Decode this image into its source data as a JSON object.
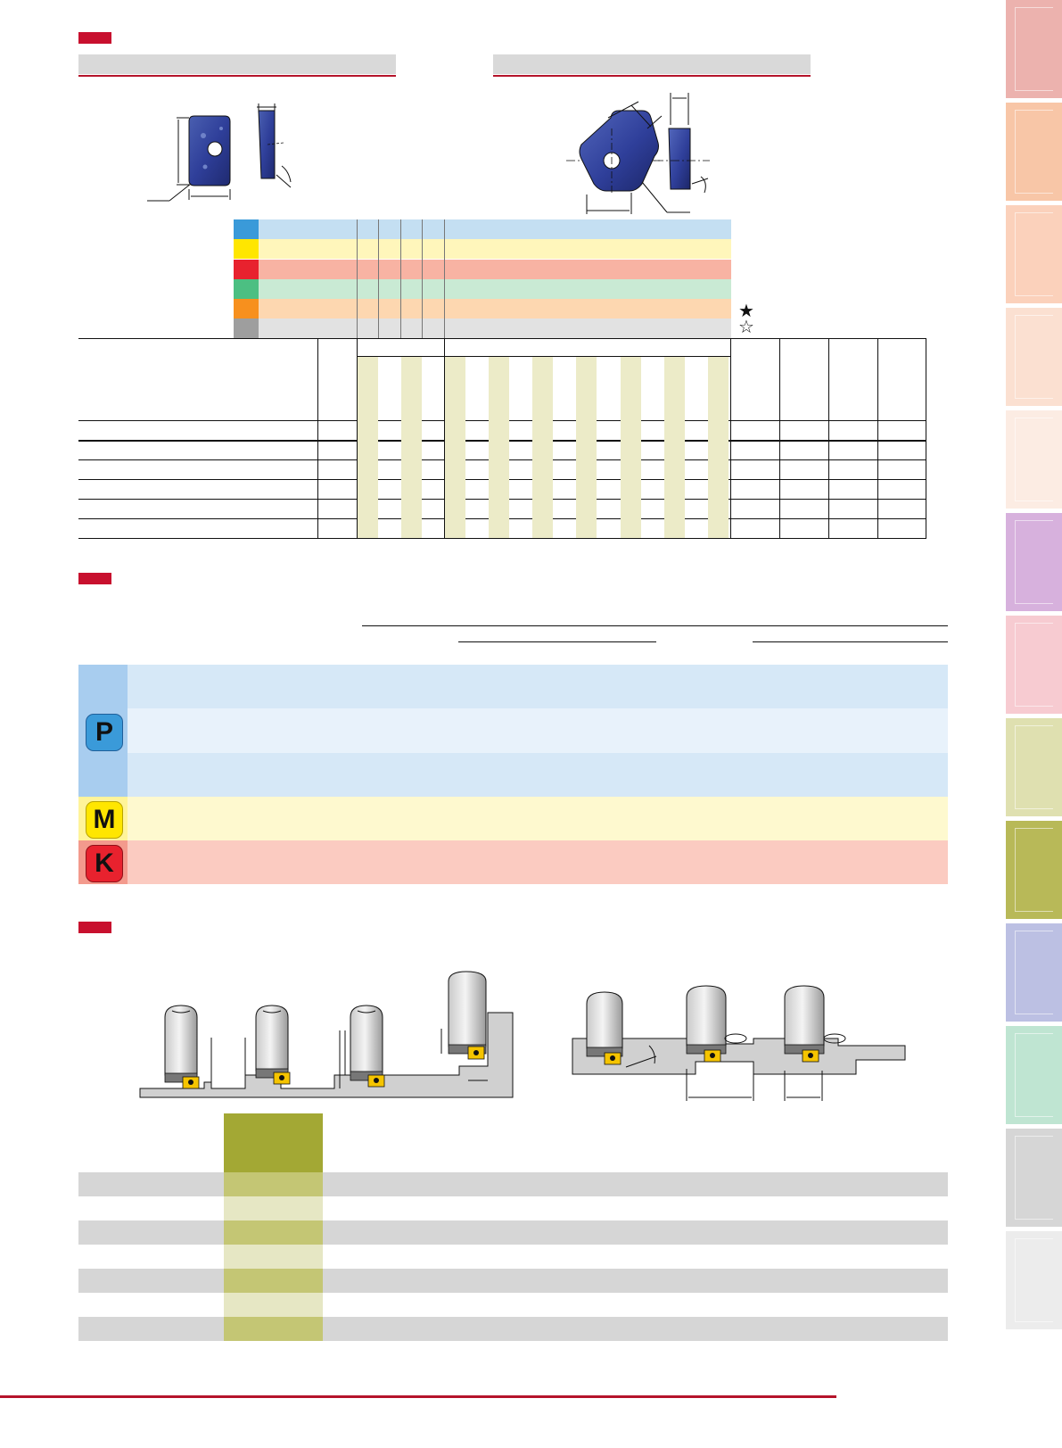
{
  "colors": {
    "accent": "#c8102e",
    "steel_blue": "#3a9ad9",
    "stainless_yellow": "#ffe600",
    "castiron_red": "#e8222e",
    "nonferrous_green": "#4cbf82",
    "heat_orange": "#f7901e",
    "hardened_gray": "#9e9e9e",
    "olive_header": "#a3a834"
  },
  "legend": {
    "stars": [
      "★",
      "☆"
    ]
  },
  "materials": {
    "p_letter": "P",
    "m_letter": "M",
    "k_letter": "K"
  },
  "side_tabs": [
    {
      "color": "#ecb2ae"
    },
    {
      "color": "#f8c6a7"
    },
    {
      "color": "#fbd1bb"
    },
    {
      "color": "#fbe0d1"
    },
    {
      "color": "#fcece3"
    },
    {
      "color": "#d7b1dd"
    },
    {
      "color": "#f7cbd1"
    },
    {
      "color": "#dfe0b0"
    },
    {
      "color": "#b8b958"
    },
    {
      "color": "#bcc0e3"
    },
    {
      "color": "#bfe5d2"
    },
    {
      "color": "#d6d6d6"
    },
    {
      "color": "#ececec"
    }
  ]
}
